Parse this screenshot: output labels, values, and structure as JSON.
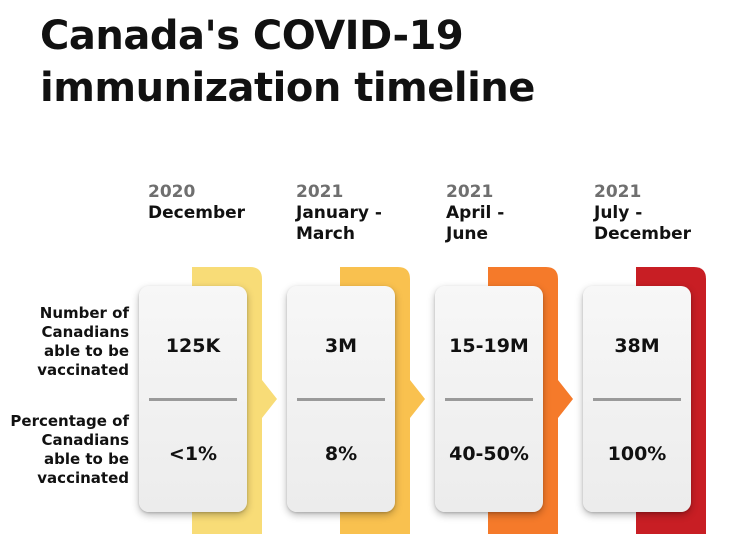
{
  "title": {
    "line1": "Canada's COVID-19",
    "line2": "immunization timeline"
  },
  "row_labels": {
    "number": "Number of\nCanadians\nable to be\nvaccinated",
    "percentage": "Percentage of\nCanadians\nable to be\nvaccinated"
  },
  "periods": [
    {
      "year": "2020",
      "range": "December",
      "number": "125K",
      "percentage": "<1%",
      "color": "#f8dc77"
    },
    {
      "year": "2021",
      "range": "January -\nMarch",
      "number": "3M",
      "percentage": "8%",
      "color": "#f9c14f"
    },
    {
      "year": "2021",
      "range": "April -\nJune",
      "number": "15-19M",
      "percentage": "40-50%",
      "color": "#f57a2a"
    },
    {
      "year": "2021",
      "range": "July -\nDecember",
      "number": "38M",
      "percentage": "100%",
      "color": "#c81e24"
    }
  ]
}
